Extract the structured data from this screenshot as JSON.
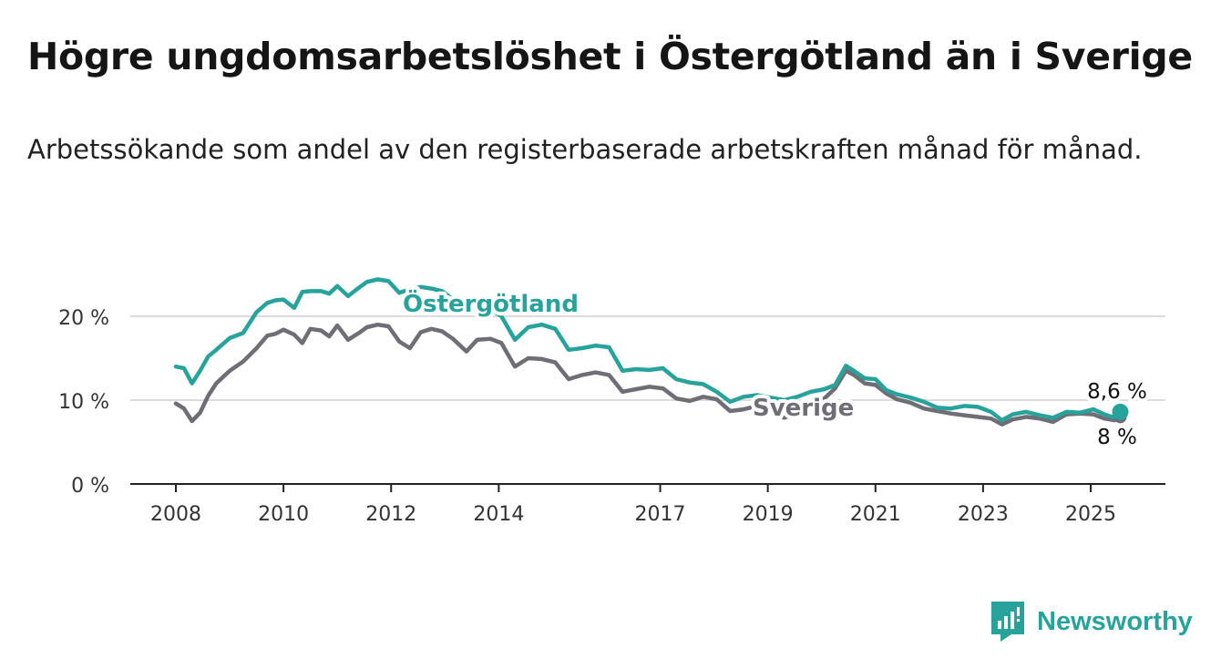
{
  "title": "Högre ungdomsarbetslöshet i Östergötland än i Sverige",
  "subtitle": "Arbetssökande som andel av den registerbaserade arbetskraften månad för månad.",
  "brand": {
    "name": "Newsworthy",
    "icon": "newsworthy-logo-icon",
    "color": "#27a39c"
  },
  "chart_data": {
    "type": "line",
    "title": "Högre ungdomsarbetslöshet i Östergötland än i Sverige",
    "subtitle": "Arbetssökande som andel av den registerbaserade arbetskraften månad för månad.",
    "xlabel": "",
    "ylabel": "",
    "xlim": [
      2008,
      2026.3
    ],
    "ylim": [
      0,
      25
    ],
    "x_ticks": [
      2008,
      2010,
      2012,
      2014,
      2017,
      2019,
      2021,
      2023,
      2025
    ],
    "x_tick_labels": [
      "2008",
      "2010",
      "2012",
      "2014",
      "2017",
      "2019",
      "2021",
      "2023",
      "2025"
    ],
    "y_ticks": [
      0,
      10,
      20
    ],
    "y_tick_labels": [
      "0 %",
      "10 %",
      "20 %"
    ],
    "grid": "horizontal",
    "legend": "direct labels",
    "series": [
      {
        "name": "Östergötland",
        "color": "#27a39c",
        "end_label": "8,6 %",
        "x": [
          2008.0,
          2008.15,
          2008.3,
          2008.45,
          2008.6,
          2008.75,
          2009.0,
          2009.25,
          2009.5,
          2009.7,
          2009.85,
          2010.0,
          2010.2,
          2010.35,
          2010.5,
          2010.7,
          2010.85,
          2011.0,
          2011.2,
          2011.4,
          2011.55,
          2011.75,
          2011.95,
          2012.15,
          2012.35,
          2012.55,
          2012.75,
          2012.95,
          2013.15,
          2013.4,
          2013.6,
          2013.85,
          2014.05,
          2014.3,
          2014.55,
          2014.8,
          2015.05,
          2015.3,
          2015.55,
          2015.8,
          2016.05,
          2016.3,
          2016.55,
          2016.8,
          2017.05,
          2017.3,
          2017.55,
          2017.8,
          2018.05,
          2018.3,
          2018.55,
          2018.8,
          2019.05,
          2019.3,
          2019.55,
          2019.8,
          2020.05,
          2020.25,
          2020.45,
          2020.6,
          2020.8,
          2021.0,
          2021.2,
          2021.4,
          2021.65,
          2021.9,
          2022.15,
          2022.4,
          2022.65,
          2022.9,
          2023.15,
          2023.35,
          2023.55,
          2023.8,
          2024.05,
          2024.3,
          2024.55,
          2024.8,
          2025.05,
          2025.25,
          2025.45,
          2025.55
        ],
        "y": [
          14.0,
          13.8,
          12.0,
          13.5,
          15.2,
          16.0,
          17.4,
          18.0,
          20.5,
          21.6,
          21.9,
          22.0,
          21.0,
          22.9,
          23.0,
          23.0,
          22.7,
          23.6,
          22.4,
          23.4,
          24.1,
          24.4,
          24.2,
          22.8,
          23.2,
          23.5,
          23.3,
          23.0,
          22.0,
          20.5,
          21.2,
          20.8,
          20.0,
          17.2,
          18.7,
          19.0,
          18.5,
          16.0,
          16.2,
          16.5,
          16.3,
          13.5,
          13.7,
          13.6,
          13.8,
          12.5,
          12.1,
          11.9,
          11.0,
          9.8,
          10.4,
          10.6,
          10.3,
          10.0,
          10.4,
          11.0,
          11.3,
          11.8,
          14.1,
          13.5,
          12.6,
          12.5,
          11.2,
          10.7,
          10.3,
          9.8,
          9.1,
          9.0,
          9.3,
          9.2,
          8.6,
          7.6,
          8.3,
          8.6,
          8.2,
          7.9,
          8.6,
          8.5,
          8.9,
          8.3,
          7.9,
          8.6
        ]
      },
      {
        "name": "Sverige",
        "color": "#6e6e74",
        "end_label": "8 %",
        "x": [
          2008.0,
          2008.15,
          2008.3,
          2008.45,
          2008.6,
          2008.75,
          2009.0,
          2009.25,
          2009.5,
          2009.7,
          2009.85,
          2010.0,
          2010.2,
          2010.35,
          2010.5,
          2010.7,
          2010.85,
          2011.0,
          2011.2,
          2011.4,
          2011.55,
          2011.75,
          2011.95,
          2012.15,
          2012.35,
          2012.55,
          2012.75,
          2012.95,
          2013.15,
          2013.4,
          2013.6,
          2013.85,
          2014.05,
          2014.3,
          2014.55,
          2014.8,
          2015.05,
          2015.3,
          2015.55,
          2015.8,
          2016.05,
          2016.3,
          2016.55,
          2016.8,
          2017.05,
          2017.3,
          2017.55,
          2017.8,
          2018.05,
          2018.3,
          2018.55,
          2018.8,
          2019.05,
          2019.3,
          2019.55,
          2019.8,
          2020.05,
          2020.25,
          2020.45,
          2020.6,
          2020.8,
          2021.0,
          2021.2,
          2021.4,
          2021.65,
          2021.9,
          2022.15,
          2022.4,
          2022.65,
          2022.9,
          2023.15,
          2023.35,
          2023.55,
          2023.8,
          2024.05,
          2024.3,
          2024.55,
          2024.8,
          2025.05,
          2025.25,
          2025.45,
          2025.55
        ],
        "y": [
          9.6,
          9.0,
          7.5,
          8.5,
          10.5,
          12.0,
          13.5,
          14.6,
          16.2,
          17.7,
          17.9,
          18.4,
          17.8,
          16.8,
          18.5,
          18.3,
          17.6,
          18.9,
          17.2,
          18.0,
          18.7,
          19.0,
          18.8,
          17.0,
          16.2,
          18.1,
          18.5,
          18.2,
          17.3,
          15.8,
          17.2,
          17.3,
          16.8,
          14.0,
          15.0,
          14.9,
          14.5,
          12.5,
          13.0,
          13.3,
          13.0,
          11.0,
          11.3,
          11.6,
          11.4,
          10.2,
          9.9,
          10.4,
          10.1,
          8.7,
          8.9,
          9.3,
          8.8,
          7.9,
          8.4,
          9.7,
          10.2,
          11.4,
          13.5,
          13.0,
          12.0,
          11.8,
          10.8,
          10.1,
          9.7,
          9.0,
          8.7,
          8.4,
          8.2,
          8.0,
          7.8,
          7.1,
          7.7,
          8.0,
          7.8,
          7.4,
          8.3,
          8.4,
          8.3,
          7.8,
          7.6,
          8.0
        ]
      }
    ]
  }
}
